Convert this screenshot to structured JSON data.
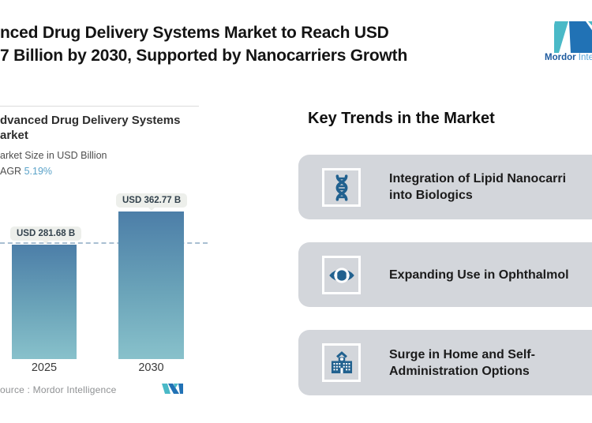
{
  "header": {
    "title_line1": "nced Drug Delivery Systems Market to Reach USD",
    "title_line2": "7 Billion by 2030, Supported by Nanocarriers Growth"
  },
  "brand": {
    "logo_text_bold": "Mordor",
    "logo_text_rest": " Inte",
    "logo_teal": "#4ab9c7",
    "logo_blue": "#2172b5"
  },
  "chart_panel": {
    "title": "dvanced Drug Delivery Systems\narket",
    "subtitle": "arket Size in USD Billion",
    "cagr_label": "AGR ",
    "cagr_value": "5.19%",
    "source": "ource :  Mordor Intelligence"
  },
  "chart_data": {
    "type": "bar",
    "title": "Advanced Drug Delivery Systems Market",
    "subtitle": "Market Size in USD Billion",
    "categories": [
      "2025",
      "2030"
    ],
    "values": [
      281.68,
      362.77
    ],
    "value_labels": [
      "USD 281.68 B",
      "USD 362.77 B"
    ],
    "unit": "USD Billion",
    "cagr_pct": 5.19,
    "ylim": [
      0,
      400
    ],
    "grid": false,
    "legend": false,
    "reference_line": {
      "style": "dashed",
      "value": 281.68,
      "color": "#a9bfd2"
    },
    "bar_gradient_top": "#4c7ea8",
    "bar_gradient_bottom": "#88c1cb"
  },
  "trends": {
    "heading": "Key Trends in the Market",
    "items": [
      {
        "icon": "dna-icon",
        "text": "Integration of Lipid Nanocarri\ninto Biologics"
      },
      {
        "icon": "eye-icon",
        "text": "Expanding Use in Ophthalmol"
      },
      {
        "icon": "hospital-icon",
        "text": "Surge in Home and Self-\nAdministration Options"
      }
    ]
  },
  "colors": {
    "card_bg": "#d3d6db",
    "icon_blue": "#21618f",
    "pill_bg": "#edefeb",
    "pill_text": "#33424d",
    "cagr_value_color": "#5ba3c9",
    "source_color": "#8f9193"
  }
}
